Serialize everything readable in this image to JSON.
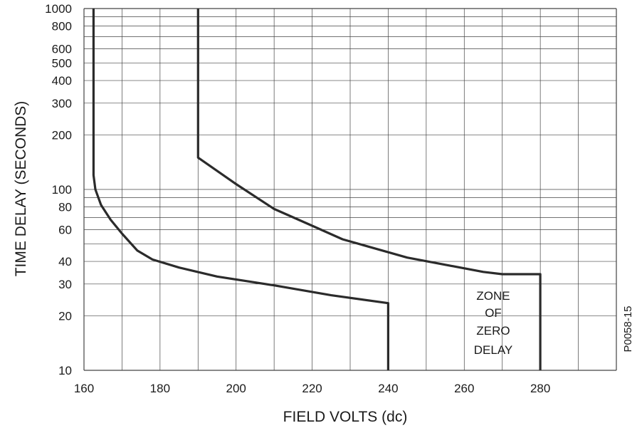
{
  "chart_data": {
    "type": "line",
    "title": "",
    "xlabel": "FIELD VOLTS (dc)",
    "ylabel": "TIME DELAY (SECONDS)",
    "xlim": [
      160,
      300
    ],
    "ylim": [
      10,
      1000
    ],
    "y_scale": "log",
    "grid": true,
    "x_ticks": [
      "160",
      "180",
      "200",
      "220",
      "240",
      "260",
      "280"
    ],
    "y_ticks": [
      "10",
      "20",
      "30",
      "40",
      "60",
      "80",
      "100",
      "200",
      "300",
      "400",
      "500",
      "600",
      "800",
      "1000"
    ],
    "annotation": [
      "ZONE",
      "OF",
      "ZERO",
      "DELAY"
    ],
    "figure_id": "P0058-15",
    "series": [
      {
        "values": [
          [
            162.5,
            1000
          ],
          [
            162.5,
            120
          ],
          [
            163,
            100
          ],
          [
            164.5,
            82
          ],
          [
            167,
            68
          ],
          [
            170,
            57
          ],
          [
            174,
            46
          ],
          [
            178,
            41
          ],
          [
            185,
            37
          ],
          [
            195,
            33
          ],
          [
            210,
            29.5
          ],
          [
            225,
            26
          ],
          [
            240,
            23.5
          ],
          [
            240,
            10
          ]
        ]
      },
      {
        "values": [
          [
            190,
            1000
          ],
          [
            190,
            150
          ],
          [
            200,
            107
          ],
          [
            210,
            78
          ],
          [
            220,
            63
          ],
          [
            228,
            53
          ],
          [
            245,
            42
          ],
          [
            265,
            35
          ],
          [
            270,
            34
          ],
          [
            280,
            34
          ],
          [
            280,
            10
          ]
        ]
      }
    ],
    "colors": {
      "curve": "#2b2b2b",
      "grid": "#444444",
      "text": "#1a1a1a"
    }
  }
}
